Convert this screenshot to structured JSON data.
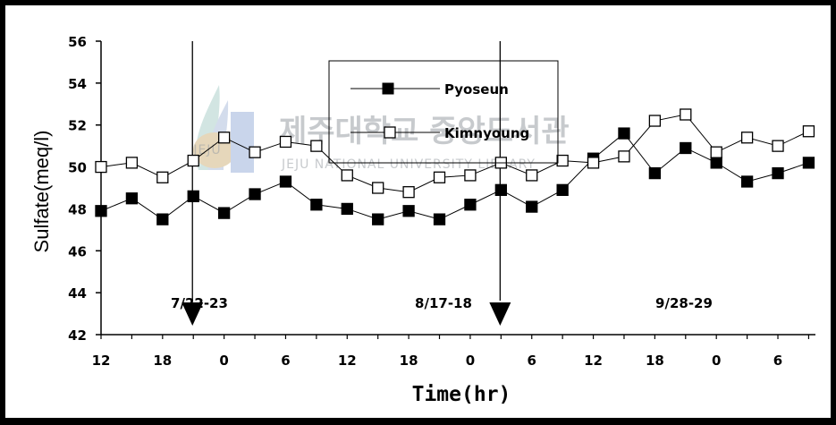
{
  "chart_data": {
    "type": "line",
    "xlabel": "Time(hr)",
    "ylabel": "Sulfate(meq/l)",
    "ylim": [
      42,
      56
    ],
    "yticks": [
      42,
      44,
      46,
      48,
      50,
      52,
      54,
      56
    ],
    "x_tick_labels": [
      "12",
      "18",
      "0",
      "6",
      "12",
      "18",
      "0",
      "6",
      "12",
      "18",
      "0",
      "6"
    ],
    "x_tick_hours": [
      0,
      6,
      12,
      18,
      24,
      30,
      36,
      42,
      48,
      54,
      60,
      66
    ],
    "x_hours": [
      0,
      3,
      6,
      9,
      12,
      15,
      18,
      21,
      24,
      27,
      30,
      33,
      36,
      39,
      42,
      45,
      48,
      51,
      54,
      57,
      60,
      63,
      66,
      69
    ],
    "series": [
      {
        "name": "Pyoseun",
        "marker": "filled-square",
        "values": [
          47.9,
          48.5,
          47.5,
          48.6,
          47.8,
          48.7,
          49.3,
          48.2,
          48.0,
          47.5,
          47.9,
          47.5,
          48.2,
          48.9,
          48.1,
          48.9,
          50.4,
          51.6,
          49.7,
          50.9,
          50.2,
          49.3,
          49.7,
          50.2
        ]
      },
      {
        "name": "Kimnyoung",
        "marker": "open-square",
        "values": [
          50.0,
          50.2,
          49.5,
          50.3,
          51.4,
          50.7,
          51.2,
          51.0,
          49.6,
          49.0,
          48.8,
          49.5,
          49.6,
          50.2,
          49.6,
          50.3,
          50.2,
          50.5,
          52.2,
          52.5,
          50.7,
          51.4,
          51.0,
          51.7
        ]
      }
    ],
    "annotations": [
      {
        "text": "7/22-23"
      },
      {
        "text": "8/17-18"
      },
      {
        "text": "9/28-29"
      }
    ],
    "period_arrows_at_hours": [
      9,
      39
    ],
    "legend_position": "top-center",
    "grid": false
  },
  "watermark": {
    "text": "제주대학교 중앙도서관",
    "subtext": "JEJU NATIONAL UNIVERSITY LIBRARY",
    "badge": "JEJU"
  },
  "colors": {
    "axis": "#000000",
    "pyoseun_fill": "#000000",
    "kimnyoung_fill": "#ffffff",
    "watermark": "#9aa0a6"
  }
}
